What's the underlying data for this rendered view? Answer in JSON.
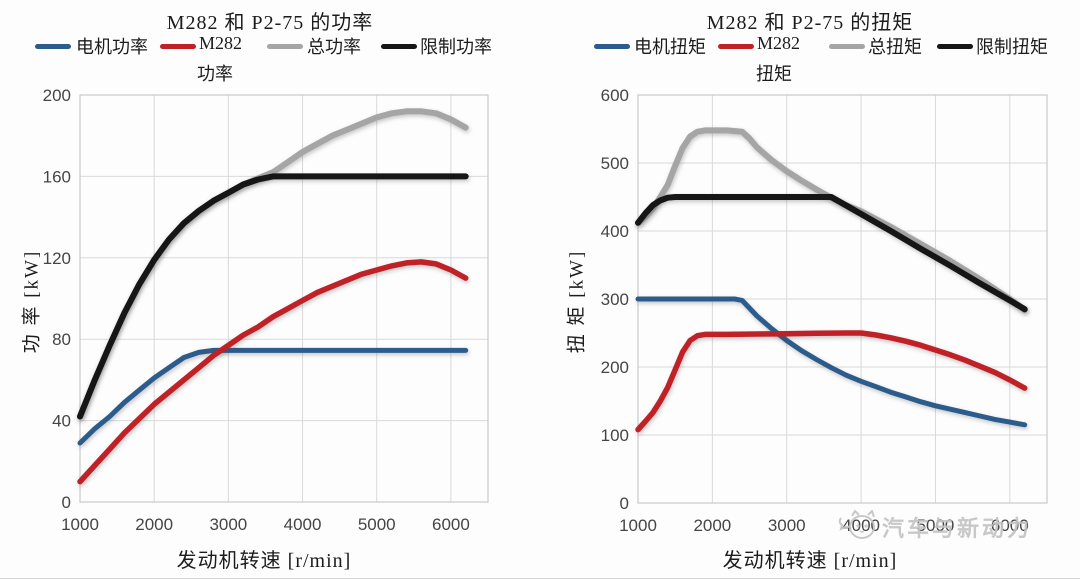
{
  "watermark": {
    "text": "汽车与新动力"
  },
  "chart_data": [
    {
      "type": "line",
      "title": "M282 和 P2-75 的功率",
      "y_label": "功 率  [kW]",
      "x_label": "发动机转速  [r/min]",
      "xlim": [
        1000,
        6500
      ],
      "ylim": [
        0,
        200
      ],
      "x_ticks": [
        1000,
        2000,
        3000,
        4000,
        5000,
        6000
      ],
      "y_ticks": [
        0,
        40,
        80,
        120,
        160,
        200
      ],
      "grid": true,
      "legend_position": "top",
      "legend": [
        {
          "label": "电机功率",
          "label2": "",
          "color": "#2b5c8c"
        },
        {
          "label": "M282",
          "label2": "功率",
          "color": "#bf2127"
        },
        {
          "label": "总功率",
          "label2": "",
          "color": "#a5a5a5"
        },
        {
          "label": "限制功率",
          "label2": "",
          "color": "#161616"
        }
      ],
      "series": [
        {
          "key": "motor-power",
          "name": "电机功率",
          "color": "#2b5c8c",
          "width": 5,
          "points": [
            [
              1000,
              29
            ],
            [
              1200,
              36
            ],
            [
              1400,
              42
            ],
            [
              1600,
              49
            ],
            [
              1800,
              55
            ],
            [
              2000,
              61
            ],
            [
              2200,
              66
            ],
            [
              2400,
              71
            ],
            [
              2600,
              73.5
            ],
            [
              2800,
              74.5
            ],
            [
              3200,
              74.5
            ],
            [
              4000,
              74.5
            ],
            [
              5000,
              74.5
            ],
            [
              6200,
              74.5
            ]
          ]
        },
        {
          "key": "m282-power",
          "name": "M282 功率",
          "color": "#bf2127",
          "width": 5.5,
          "points": [
            [
              1000,
              10
            ],
            [
              1200,
              18
            ],
            [
              1400,
              26
            ],
            [
              1600,
              34
            ],
            [
              1800,
              41
            ],
            [
              2000,
              48
            ],
            [
              2200,
              54
            ],
            [
              2400,
              60
            ],
            [
              2600,
              66
            ],
            [
              2800,
              72
            ],
            [
              3000,
              77
            ],
            [
              3200,
              82
            ],
            [
              3400,
              86
            ],
            [
              3600,
              91
            ],
            [
              3800,
              95
            ],
            [
              4000,
              99
            ],
            [
              4200,
              103
            ],
            [
              4400,
              106
            ],
            [
              4600,
              109
            ],
            [
              4800,
              112
            ],
            [
              5000,
              114
            ],
            [
              5200,
              116
            ],
            [
              5400,
              117.5
            ],
            [
              5600,
              118
            ],
            [
              5800,
              117
            ],
            [
              6000,
              114
            ],
            [
              6200,
              110
            ]
          ]
        },
        {
          "key": "total-power",
          "name": "总功率",
          "color": "#a5a5a5",
          "width": 6,
          "points": [
            [
              1000,
              42
            ],
            [
              1200,
              60
            ],
            [
              1400,
              77
            ],
            [
              1600,
              93
            ],
            [
              1800,
              107
            ],
            [
              2000,
              119
            ],
            [
              2200,
              129
            ],
            [
              2400,
              137
            ],
            [
              2600,
              143
            ],
            [
              2800,
              148
            ],
            [
              3000,
              152
            ],
            [
              3200,
              156
            ],
            [
              3400,
              159
            ],
            [
              3600,
              162
            ],
            [
              3800,
              167
            ],
            [
              4000,
              172
            ],
            [
              4200,
              176
            ],
            [
              4400,
              180
            ],
            [
              4600,
              183
            ],
            [
              4800,
              186
            ],
            [
              5000,
              189
            ],
            [
              5200,
              191
            ],
            [
              5400,
              192
            ],
            [
              5600,
              192
            ],
            [
              5800,
              191
            ],
            [
              6000,
              188
            ],
            [
              6200,
              184
            ]
          ]
        },
        {
          "key": "limit-power",
          "name": "限制功率",
          "color": "#161616",
          "width": 6,
          "points": [
            [
              1000,
              42
            ],
            [
              1200,
              60
            ],
            [
              1400,
              77
            ],
            [
              1600,
              93
            ],
            [
              1800,
              107
            ],
            [
              2000,
              119
            ],
            [
              2200,
              129
            ],
            [
              2400,
              137
            ],
            [
              2600,
              143
            ],
            [
              2800,
              148
            ],
            [
              3000,
              152
            ],
            [
              3200,
              156
            ],
            [
              3400,
              158.5
            ],
            [
              3600,
              160
            ],
            [
              4000,
              160
            ],
            [
              5000,
              160
            ],
            [
              6200,
              160
            ]
          ]
        }
      ]
    },
    {
      "type": "line",
      "title": "M282 和 P2-75 的扭矩",
      "y_label": "扭 矩  [kW]",
      "x_label": "发动机转速  [r/min]",
      "xlim": [
        1000,
        6500
      ],
      "ylim": [
        0,
        600
      ],
      "x_ticks": [
        1000,
        2000,
        3000,
        4000,
        5000,
        6000
      ],
      "y_ticks": [
        0,
        100,
        200,
        300,
        400,
        500,
        600
      ],
      "grid": true,
      "legend_position": "top",
      "legend": [
        {
          "label": "电机扭矩",
          "label2": "",
          "color": "#2b5c8c"
        },
        {
          "label": "M282",
          "label2": "扭矩",
          "color": "#bf2127"
        },
        {
          "label": "总扭矩",
          "label2": "",
          "color": "#a5a5a5"
        },
        {
          "label": "限制扭矩",
          "label2": "",
          "color": "#161616"
        }
      ],
      "series": [
        {
          "key": "motor-torque",
          "name": "电机扭矩",
          "color": "#2b5c8c",
          "width": 5,
          "points": [
            [
              1000,
              300
            ],
            [
              1600,
              300
            ],
            [
              2300,
              300
            ],
            [
              2400,
              298
            ],
            [
              2600,
              275
            ],
            [
              2800,
              256
            ],
            [
              3000,
              239
            ],
            [
              3200,
              224
            ],
            [
              3400,
              211
            ],
            [
              3600,
              199
            ],
            [
              3800,
              188
            ],
            [
              4000,
              179
            ],
            [
              4200,
              171
            ],
            [
              4400,
              163
            ],
            [
              4600,
              156
            ],
            [
              4800,
              149
            ],
            [
              5000,
              143
            ],
            [
              5200,
              138
            ],
            [
              5400,
              133
            ],
            [
              5600,
              128
            ],
            [
              5800,
              123
            ],
            [
              6000,
              119
            ],
            [
              6200,
              115
            ]
          ]
        },
        {
          "key": "m282-torque",
          "name": "M282 扭矩",
          "color": "#bf2127",
          "width": 5.5,
          "points": [
            [
              1000,
              108
            ],
            [
              1100,
              120
            ],
            [
              1200,
              133
            ],
            [
              1300,
              150
            ],
            [
              1400,
              170
            ],
            [
              1500,
              196
            ],
            [
              1600,
              222
            ],
            [
              1700,
              239
            ],
            [
              1800,
              246
            ],
            [
              1900,
              248
            ],
            [
              2200,
              248
            ],
            [
              2600,
              248.5
            ],
            [
              3000,
              249
            ],
            [
              3400,
              249.5
            ],
            [
              3800,
              250
            ],
            [
              4000,
              250
            ],
            [
              4200,
              247
            ],
            [
              4400,
              243
            ],
            [
              4600,
              238
            ],
            [
              4800,
              232
            ],
            [
              5000,
              225
            ],
            [
              5200,
              218
            ],
            [
              5400,
              210
            ],
            [
              5600,
              201
            ],
            [
              5800,
              192
            ],
            [
              6000,
              181
            ],
            [
              6200,
              169
            ]
          ]
        },
        {
          "key": "total-torque",
          "name": "总扭矩",
          "color": "#a5a5a5",
          "width": 6,
          "points": [
            [
              1000,
              412
            ],
            [
              1100,
              421
            ],
            [
              1200,
              433
            ],
            [
              1300,
              450
            ],
            [
              1400,
              468
            ],
            [
              1500,
              496
            ],
            [
              1600,
              522
            ],
            [
              1700,
              539
            ],
            [
              1800,
              546
            ],
            [
              1900,
              548
            ],
            [
              2200,
              548
            ],
            [
              2400,
              546
            ],
            [
              2500,
              536
            ],
            [
              2600,
              523
            ],
            [
              2800,
              504
            ],
            [
              3000,
              488
            ],
            [
              3200,
              474
            ],
            [
              3400,
              461
            ],
            [
              3600,
              449
            ],
            [
              3800,
              438
            ],
            [
              4000,
              429
            ],
            [
              4400,
              406
            ],
            [
              4800,
              381
            ],
            [
              5200,
              356
            ],
            [
              5600,
              329
            ],
            [
              6000,
              300
            ],
            [
              6200,
              284
            ]
          ]
        },
        {
          "key": "limit-torque",
          "name": "限制扭矩",
          "color": "#161616",
          "width": 6,
          "points": [
            [
              1000,
              412
            ],
            [
              1100,
              426
            ],
            [
              1200,
              438
            ],
            [
              1300,
              445
            ],
            [
              1400,
              449
            ],
            [
              1500,
              450
            ],
            [
              2000,
              450
            ],
            [
              3000,
              450
            ],
            [
              3600,
              450
            ],
            [
              4000,
              425
            ],
            [
              4400,
              400
            ],
            [
              4800,
              374
            ],
            [
              5200,
              349
            ],
            [
              5600,
              323
            ],
            [
              6000,
              298
            ],
            [
              6200,
              285
            ]
          ]
        }
      ]
    }
  ]
}
